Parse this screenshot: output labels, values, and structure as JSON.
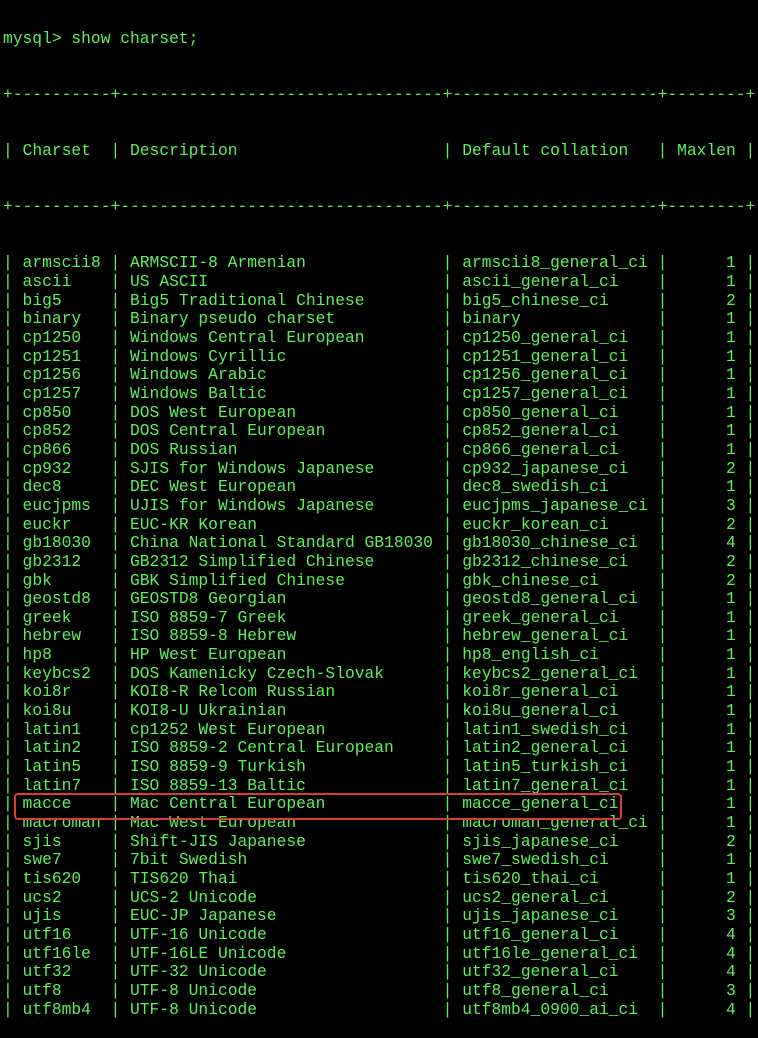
{
  "prompt": "mysql> show charset;",
  "columns": [
    "Charset",
    "Description",
    "Default collation",
    "Maxlen"
  ],
  "highlight_color": "#d8402c",
  "text_color": "#5ef05a",
  "highlighted_row": "utf8",
  "rows": [
    [
      "armscii8",
      "ARMSCII-8 Armenian",
      "armscii8_general_ci",
      "1"
    ],
    [
      "ascii",
      "US ASCII",
      "ascii_general_ci",
      "1"
    ],
    [
      "big5",
      "Big5 Traditional Chinese",
      "big5_chinese_ci",
      "2"
    ],
    [
      "binary",
      "Binary pseudo charset",
      "binary",
      "1"
    ],
    [
      "cp1250",
      "Windows Central European",
      "cp1250_general_ci",
      "1"
    ],
    [
      "cp1251",
      "Windows Cyrillic",
      "cp1251_general_ci",
      "1"
    ],
    [
      "cp1256",
      "Windows Arabic",
      "cp1256_general_ci",
      "1"
    ],
    [
      "cp1257",
      "Windows Baltic",
      "cp1257_general_ci",
      "1"
    ],
    [
      "cp850",
      "DOS West European",
      "cp850_general_ci",
      "1"
    ],
    [
      "cp852",
      "DOS Central European",
      "cp852_general_ci",
      "1"
    ],
    [
      "cp866",
      "DOS Russian",
      "cp866_general_ci",
      "1"
    ],
    [
      "cp932",
      "SJIS for Windows Japanese",
      "cp932_japanese_ci",
      "2"
    ],
    [
      "dec8",
      "DEC West European",
      "dec8_swedish_ci",
      "1"
    ],
    [
      "eucjpms",
      "UJIS for Windows Japanese",
      "eucjpms_japanese_ci",
      "3"
    ],
    [
      "euckr",
      "EUC-KR Korean",
      "euckr_korean_ci",
      "2"
    ],
    [
      "gb18030",
      "China National Standard GB18030",
      "gb18030_chinese_ci",
      "4"
    ],
    [
      "gb2312",
      "GB2312 Simplified Chinese",
      "gb2312_chinese_ci",
      "2"
    ],
    [
      "gbk",
      "GBK Simplified Chinese",
      "gbk_chinese_ci",
      "2"
    ],
    [
      "geostd8",
      "GEOSTD8 Georgian",
      "geostd8_general_ci",
      "1"
    ],
    [
      "greek",
      "ISO 8859-7 Greek",
      "greek_general_ci",
      "1"
    ],
    [
      "hebrew",
      "ISO 8859-8 Hebrew",
      "hebrew_general_ci",
      "1"
    ],
    [
      "hp8",
      "HP West European",
      "hp8_english_ci",
      "1"
    ],
    [
      "keybcs2",
      "DOS Kamenicky Czech-Slovak",
      "keybcs2_general_ci",
      "1"
    ],
    [
      "koi8r",
      "KOI8-R Relcom Russian",
      "koi8r_general_ci",
      "1"
    ],
    [
      "koi8u",
      "KOI8-U Ukrainian",
      "koi8u_general_ci",
      "1"
    ],
    [
      "latin1",
      "cp1252 West European",
      "latin1_swedish_ci",
      "1"
    ],
    [
      "latin2",
      "ISO 8859-2 Central European",
      "latin2_general_ci",
      "1"
    ],
    [
      "latin5",
      "ISO 8859-9 Turkish",
      "latin5_turkish_ci",
      "1"
    ],
    [
      "latin7",
      "ISO 8859-13 Baltic",
      "latin7_general_ci",
      "1"
    ],
    [
      "macce",
      "Mac Central European",
      "macce_general_ci",
      "1"
    ],
    [
      "macroman",
      "Mac West European",
      "macroman_general_ci",
      "1"
    ],
    [
      "sjis",
      "Shift-JIS Japanese",
      "sjis_japanese_ci",
      "2"
    ],
    [
      "swe7",
      "7bit Swedish",
      "swe7_swedish_ci",
      "1"
    ],
    [
      "tis620",
      "TIS620 Thai",
      "tis620_thai_ci",
      "1"
    ],
    [
      "ucs2",
      "UCS-2 Unicode",
      "ucs2_general_ci",
      "2"
    ],
    [
      "ujis",
      "EUC-JP Japanese",
      "ujis_japanese_ci",
      "3"
    ],
    [
      "utf16",
      "UTF-16 Unicode",
      "utf16_general_ci",
      "4"
    ],
    [
      "utf16le",
      "UTF-16LE Unicode",
      "utf16le_general_ci",
      "4"
    ],
    [
      "utf32",
      "UTF-32 Unicode",
      "utf32_general_ci",
      "4"
    ],
    [
      "utf8",
      "UTF-8 Unicode",
      "utf8_general_ci",
      "3"
    ],
    [
      "utf8mb4",
      "UTF-8 Unicode",
      "utf8mb4_0900_ai_ci",
      "4"
    ]
  ]
}
